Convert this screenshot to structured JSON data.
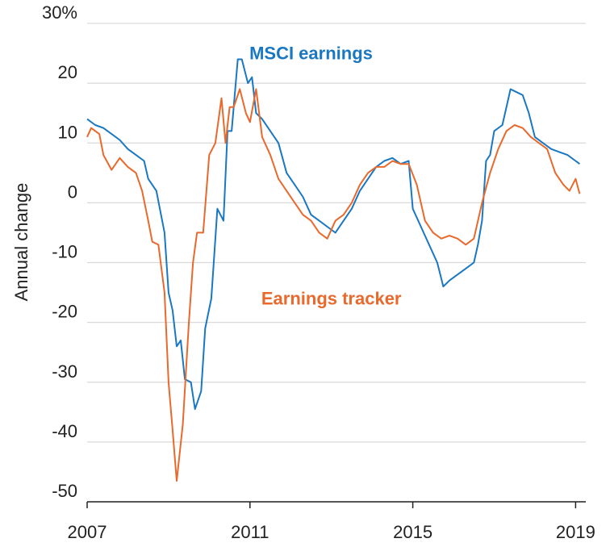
{
  "chart_data": {
    "type": "line",
    "ylabel": "Annual change",
    "xlabel": "",
    "title": "",
    "ylim": [
      -50,
      30
    ],
    "xlim": [
      2007,
      2019.25
    ],
    "grid": "horizontal",
    "y_ticks": [
      {
        "value": 30,
        "label": "30%"
      },
      {
        "value": 20,
        "label": "20"
      },
      {
        "value": 10,
        "label": "10"
      },
      {
        "value": 0,
        "label": "0"
      },
      {
        "value": -10,
        "label": "-10"
      },
      {
        "value": -20,
        "label": "-20"
      },
      {
        "value": -30,
        "label": "-30"
      },
      {
        "value": -40,
        "label": "-40"
      },
      {
        "value": -50,
        "label": "-50"
      }
    ],
    "x_ticks": [
      {
        "value": 2007,
        "label": "2007"
      },
      {
        "value": 2011,
        "label": "2011"
      },
      {
        "value": 2015,
        "label": "2015"
      },
      {
        "value": 2019,
        "label": "2019"
      }
    ],
    "series": [
      {
        "name": "MSCI earnings",
        "color": "#1a78c2",
        "points": [
          [
            2007.0,
            14
          ],
          [
            2007.2,
            13
          ],
          [
            2007.4,
            12.5
          ],
          [
            2007.6,
            11.5
          ],
          [
            2007.8,
            10.5
          ],
          [
            2008.0,
            9
          ],
          [
            2008.2,
            8
          ],
          [
            2008.4,
            7
          ],
          [
            2008.5,
            4
          ],
          [
            2008.7,
            2
          ],
          [
            2008.9,
            -5
          ],
          [
            2009.0,
            -15
          ],
          [
            2009.1,
            -18
          ],
          [
            2009.2,
            -24
          ],
          [
            2009.3,
            -23
          ],
          [
            2009.4,
            -29.5
          ],
          [
            2009.55,
            -30
          ],
          [
            2009.65,
            -34.5
          ],
          [
            2009.8,
            -31.5
          ],
          [
            2009.9,
            -21
          ],
          [
            2010.05,
            -16
          ],
          [
            2010.2,
            -1
          ],
          [
            2010.35,
            -3
          ],
          [
            2010.45,
            12
          ],
          [
            2010.55,
            12
          ],
          [
            2010.7,
            24
          ],
          [
            2010.8,
            24
          ],
          [
            2010.95,
            20
          ],
          [
            2011.05,
            21
          ],
          [
            2011.15,
            15
          ],
          [
            2011.3,
            14
          ],
          [
            2011.5,
            12
          ],
          [
            2011.7,
            10
          ],
          [
            2011.9,
            5
          ],
          [
            2012.1,
            3
          ],
          [
            2012.3,
            1
          ],
          [
            2012.5,
            -2
          ],
          [
            2012.7,
            -3
          ],
          [
            2012.9,
            -4
          ],
          [
            2013.1,
            -5
          ],
          [
            2013.3,
            -3
          ],
          [
            2013.5,
            -1
          ],
          [
            2013.7,
            2
          ],
          [
            2013.9,
            4
          ],
          [
            2014.1,
            6
          ],
          [
            2014.3,
            7
          ],
          [
            2014.5,
            7.5
          ],
          [
            2014.7,
            6.5
          ],
          [
            2014.9,
            7
          ],
          [
            2015.0,
            -1
          ],
          [
            2015.2,
            -4
          ],
          [
            2015.4,
            -7
          ],
          [
            2015.6,
            -10
          ],
          [
            2015.75,
            -14
          ],
          [
            2015.9,
            -13
          ],
          [
            2016.1,
            -12
          ],
          [
            2016.3,
            -11
          ],
          [
            2016.5,
            -10
          ],
          [
            2016.6,
            -7
          ],
          [
            2016.7,
            -3
          ],
          [
            2016.8,
            7
          ],
          [
            2016.9,
            8
          ],
          [
            2017.0,
            12
          ],
          [
            2017.2,
            13
          ],
          [
            2017.4,
            19
          ],
          [
            2017.55,
            18.5
          ],
          [
            2017.7,
            18
          ],
          [
            2017.85,
            15
          ],
          [
            2018.0,
            11
          ],
          [
            2018.2,
            10
          ],
          [
            2018.4,
            9
          ],
          [
            2018.6,
            8.5
          ],
          [
            2018.8,
            8
          ],
          [
            2019.0,
            7
          ],
          [
            2019.1,
            6.5
          ]
        ]
      },
      {
        "name": "Earnings tracker",
        "color": "#e9692c",
        "points": [
          [
            2007.0,
            11
          ],
          [
            2007.1,
            12.5
          ],
          [
            2007.3,
            11.5
          ],
          [
            2007.4,
            8
          ],
          [
            2007.6,
            5.5
          ],
          [
            2007.8,
            7.5
          ],
          [
            2008.0,
            6
          ],
          [
            2008.2,
            5
          ],
          [
            2008.35,
            2
          ],
          [
            2008.5,
            -3
          ],
          [
            2008.6,
            -6.5
          ],
          [
            2008.75,
            -7
          ],
          [
            2008.9,
            -15
          ],
          [
            2009.0,
            -30
          ],
          [
            2009.1,
            -38
          ],
          [
            2009.2,
            -46.5
          ],
          [
            2009.35,
            -37
          ],
          [
            2009.5,
            -20
          ],
          [
            2009.6,
            -10
          ],
          [
            2009.7,
            -5
          ],
          [
            2009.85,
            -5
          ],
          [
            2010.0,
            8
          ],
          [
            2010.15,
            10
          ],
          [
            2010.3,
            17.5
          ],
          [
            2010.4,
            10
          ],
          [
            2010.5,
            16
          ],
          [
            2010.6,
            16
          ],
          [
            2010.75,
            19
          ],
          [
            2010.9,
            15
          ],
          [
            2011.0,
            13.5
          ],
          [
            2011.15,
            19
          ],
          [
            2011.3,
            11
          ],
          [
            2011.5,
            8
          ],
          [
            2011.7,
            4
          ],
          [
            2011.9,
            2
          ],
          [
            2012.1,
            0
          ],
          [
            2012.3,
            -2
          ],
          [
            2012.5,
            -3
          ],
          [
            2012.7,
            -5
          ],
          [
            2012.9,
            -6
          ],
          [
            2013.1,
            -3
          ],
          [
            2013.3,
            -2
          ],
          [
            2013.5,
            0
          ],
          [
            2013.7,
            3
          ],
          [
            2013.9,
            5
          ],
          [
            2014.1,
            6
          ],
          [
            2014.3,
            6
          ],
          [
            2014.5,
            7
          ],
          [
            2014.7,
            6.5
          ],
          [
            2014.9,
            6.5
          ],
          [
            2015.1,
            3
          ],
          [
            2015.3,
            -3
          ],
          [
            2015.5,
            -5
          ],
          [
            2015.7,
            -6
          ],
          [
            2015.9,
            -5.5
          ],
          [
            2016.1,
            -6
          ],
          [
            2016.3,
            -7
          ],
          [
            2016.5,
            -6
          ],
          [
            2016.7,
            0
          ],
          [
            2016.9,
            5
          ],
          [
            2017.1,
            9
          ],
          [
            2017.3,
            12
          ],
          [
            2017.5,
            13
          ],
          [
            2017.7,
            12.5
          ],
          [
            2017.9,
            11
          ],
          [
            2018.1,
            10
          ],
          [
            2018.3,
            9
          ],
          [
            2018.5,
            5
          ],
          [
            2018.7,
            3
          ],
          [
            2018.85,
            2
          ],
          [
            2019.0,
            4
          ],
          [
            2019.1,
            1.5
          ]
        ]
      }
    ],
    "annotations": [
      {
        "text": "MSCI earnings",
        "series": "MSCI earnings",
        "x": 2012.5,
        "y": 24
      },
      {
        "text": "Earnings tracker",
        "series": "Earnings tracker",
        "x": 2013.0,
        "y": -17
      }
    ]
  }
}
